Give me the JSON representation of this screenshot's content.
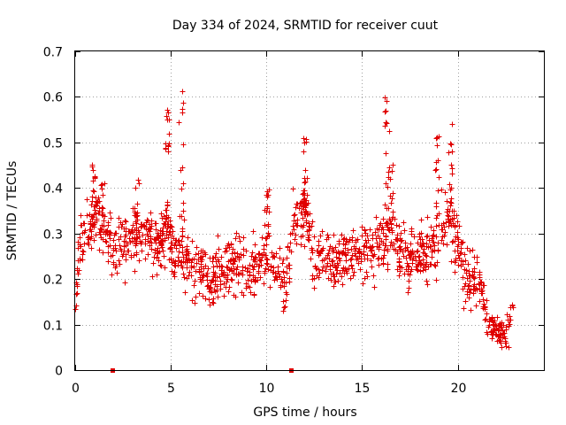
{
  "chart_data": {
    "type": "scatter",
    "title": "Day 334 of 2024, SRMTID for receiver cuut",
    "xlabel": "GPS time / hours",
    "ylabel": "SRMTID / TECUs",
    "xlim": [
      0,
      24.5
    ],
    "ylim": [
      0,
      0.7
    ],
    "grid": true,
    "x_ticks": [
      0,
      5,
      10,
      15,
      20
    ],
    "x_tick_labels": [
      "0",
      "5",
      "10",
      "15",
      "20"
    ],
    "y_ticks": [
      0,
      0.1,
      0.2,
      0.3,
      0.4,
      0.5,
      0.6,
      0.7
    ],
    "y_tick_labels": [
      "0",
      "0.1",
      "0.2",
      "0.3",
      "0.4",
      "0.5",
      "0.6",
      "0.7"
    ],
    "series": [
      {
        "name": "SRMTID",
        "marker": "plus",
        "color": "#e00000",
        "profile_x": [
          0.0,
          0.2,
          0.5,
          1.0,
          1.5,
          2.0,
          2.5,
          3.0,
          3.5,
          4.0,
          4.5,
          4.8,
          5.0,
          5.5,
          6.0,
          6.5,
          7.0,
          7.5,
          8.0,
          8.5,
          9.0,
          9.5,
          10.0,
          10.5,
          11.0,
          11.5,
          12.0,
          12.5,
          13.0,
          13.5,
          14.0,
          14.5,
          15.0,
          15.5,
          16.0,
          16.5,
          17.0,
          17.5,
          18.0,
          18.5,
          19.0,
          19.5,
          20.0,
          20.5,
          21.0,
          21.5,
          22.0,
          22.5,
          22.9
        ],
        "profile_y": [
          0.16,
          0.26,
          0.3,
          0.34,
          0.3,
          0.26,
          0.28,
          0.28,
          0.3,
          0.28,
          0.27,
          0.33,
          0.25,
          0.28,
          0.22,
          0.22,
          0.2,
          0.22,
          0.23,
          0.24,
          0.2,
          0.22,
          0.25,
          0.22,
          0.2,
          0.34,
          0.35,
          0.25,
          0.24,
          0.24,
          0.26,
          0.26,
          0.27,
          0.26,
          0.28,
          0.3,
          0.26,
          0.24,
          0.26,
          0.26,
          0.3,
          0.33,
          0.26,
          0.2,
          0.21,
          0.12,
          0.09,
          0.08,
          0.14
        ],
        "spread_y": 0.06,
        "n_points": 1400,
        "peaks": [
          {
            "x": 0.9,
            "y": 0.48
          },
          {
            "x": 1.4,
            "y": 0.41
          },
          {
            "x": 3.2,
            "y": 0.43
          },
          {
            "x": 4.8,
            "y": 0.6
          },
          {
            "x": 5.55,
            "y": 0.62
          },
          {
            "x": 10.0,
            "y": 0.4
          },
          {
            "x": 12.0,
            "y": 0.53
          },
          {
            "x": 16.3,
            "y": 0.6
          },
          {
            "x": 16.5,
            "y": 0.48
          },
          {
            "x": 19.6,
            "y": 0.54
          },
          {
            "x": 18.9,
            "y": 0.52
          }
        ]
      },
      {
        "name": "zero markers",
        "marker": "square",
        "color": "#e00000",
        "x": [
          1.95,
          11.3
        ],
        "y": [
          0,
          0
        ]
      }
    ]
  }
}
